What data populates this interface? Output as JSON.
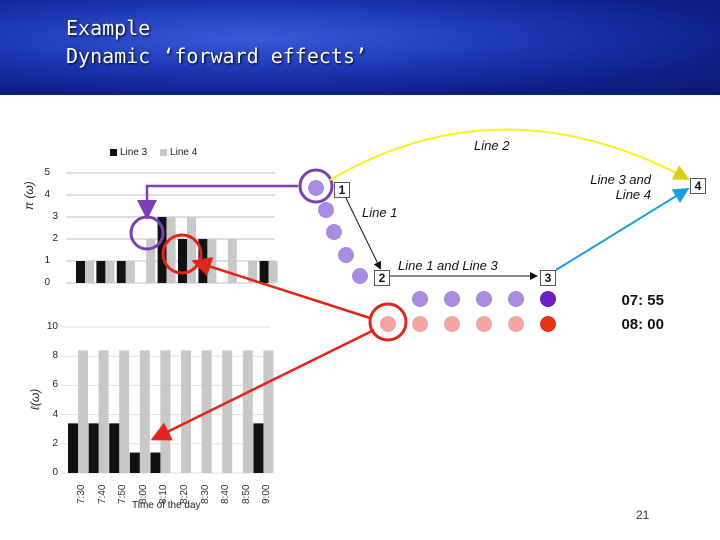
{
  "slide": {
    "title_line1": "Example",
    "title_line2": "Dynamic ‘forward effects’",
    "slide_number": "21"
  },
  "colors": {
    "line3": "#111111",
    "line4": "#c8c8c8",
    "purple_dot": "#a98be0",
    "pink_dot": "#f4a3a3",
    "purple_dark": "#6a1fc0",
    "red_dark": "#e0341a",
    "purple_ring": "#7a3fb0",
    "red_ring": "#e0261a",
    "yellow_arrow": "#f4f21a",
    "blue_arrow": "#1aa0e0"
  },
  "legend": {
    "line3": "Line 3",
    "line4": "Line 4"
  },
  "top_chart": {
    "ylabel": "π (ω)",
    "yticks": [
      "5",
      "4",
      "3",
      "2",
      "1",
      "0"
    ]
  },
  "bottom_chart": {
    "ylabel": "ℓ(ω)",
    "yticks": [
      "10",
      "8",
      "6",
      "4",
      "2",
      "0"
    ],
    "xlabel": "Time of the day",
    "xticks": [
      "7:30",
      "7:40",
      "7:50",
      "8:00",
      "8:10",
      "8:20",
      "8:30",
      "8:40",
      "8:50",
      "9:00"
    ]
  },
  "labels": {
    "line2": "Line 2",
    "line1": "Line 1",
    "line1_and_3": "Line 1 and Line 3",
    "line3_and_4_a": "Line 3 and",
    "line3_and_4_b": "Line 4",
    "badge1": "1",
    "badge2": "2",
    "badge3": "3",
    "badge4": "4",
    "time1": "07: 55",
    "time2": "08: 00"
  },
  "chart_data": [
    {
      "type": "bar",
      "categories": [
        "7:30",
        "7:40",
        "7:50",
        "8:00",
        "8:10",
        "8:20",
        "8:30",
        "8:40",
        "8:50",
        "9:00"
      ],
      "series": [
        {
          "name": "Line 3",
          "values": [
            1,
            1,
            1,
            0,
            3,
            2,
            2,
            0,
            0,
            1
          ]
        },
        {
          "name": "Line 4",
          "values": [
            1,
            1,
            1,
            2,
            3,
            3,
            2,
            2,
            1,
            1
          ]
        }
      ],
      "ylim": [
        0,
        5
      ]
    },
    {
      "type": "bar",
      "categories": [
        "7:30",
        "7:40",
        "7:50",
        "8:00",
        "8:10",
        "8:20",
        "8:30",
        "8:40",
        "8:50",
        "9:00"
      ],
      "series": [
        {
          "name": "Line 3",
          "values": [
            3.4,
            3.4,
            3.4,
            1.4,
            1.4,
            0,
            0,
            0,
            0,
            3.4
          ]
        },
        {
          "name": "Line 4",
          "values": [
            8.4,
            8.4,
            8.4,
            8.4,
            8.4,
            8.4,
            8.4,
            8.4,
            8.4,
            8.4
          ]
        }
      ],
      "xlabel": "Time of the day",
      "ylim": [
        0,
        10
      ]
    }
  ]
}
